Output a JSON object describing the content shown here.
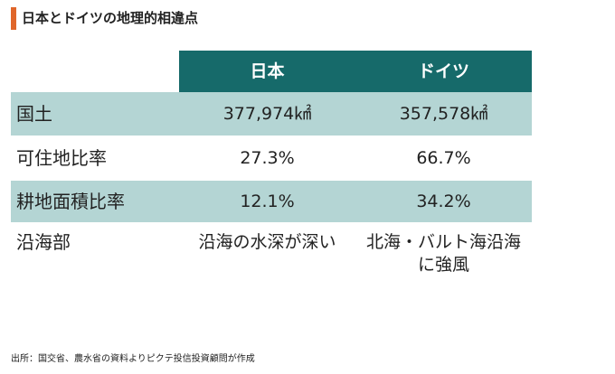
{
  "title": "日本とドイツの地理的相違点",
  "table": {
    "columns": [
      "日本",
      "ドイツ"
    ],
    "rows": [
      {
        "label": "国土",
        "values": [
          "377,974㎢",
          "357,578㎢"
        ]
      },
      {
        "label": "可住地比率",
        "values": [
          "27.3%",
          "66.7%"
        ]
      },
      {
        "label": "耕地面積比率",
        "values": [
          "12.1%",
          "34.2%"
        ]
      },
      {
        "label": "沿海部",
        "values": [
          "沿海の水深が深い",
          "北海・バルト海沿海に強風"
        ],
        "germany_lines": [
          "北海・バルト海沿海",
          "に強風"
        ]
      }
    ]
  },
  "source": "出所：国交省、農水省の資料よりピクテ投信投資顧問が作成",
  "colors": {
    "header_bg": "#166a6a",
    "alt_row_bg": "#b4d5d4",
    "title_accent": "#e0662a"
  }
}
